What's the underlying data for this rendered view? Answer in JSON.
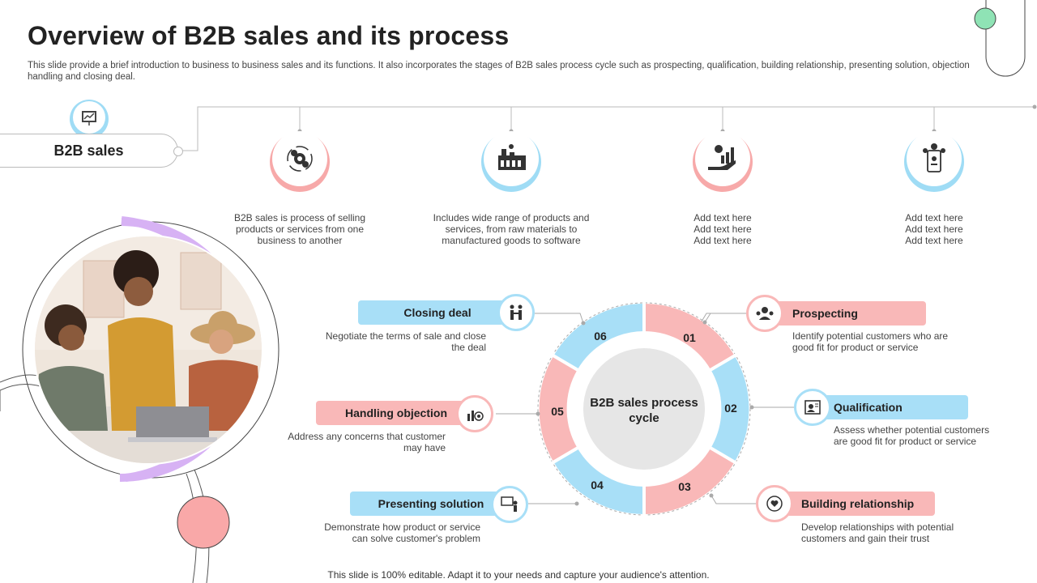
{
  "header": {
    "title": "Overview of B2B sales and its process",
    "subtitle": "This slide provide a brief introduction to business to business sales and its functions. It also incorporates the stages of B2B sales process cycle such as prospecting, qualification, building relationship, presenting solution, objection handling and closing deal."
  },
  "b2b": {
    "label": "B2B sales",
    "items": [
      {
        "icon": "gears-cycle-icon",
        "text": "B2B sales is process of selling products or services from one business to another",
        "accent": "#f7a9a9"
      },
      {
        "icon": "factory-icon",
        "text": "Includes wide range of products and services, from raw materials to manufactured goods to software",
        "accent": "#9fdcf5"
      },
      {
        "icon": "hand-growth-chart-icon",
        "text": "Add text here\nAdd text here\nAdd text here",
        "accent": "#f7a9a9"
      },
      {
        "icon": "mobile-payment-icon",
        "text": "Add text here\nAdd text here\nAdd text here",
        "accent": "#9fdcf5"
      }
    ]
  },
  "cycle": {
    "center_label": "B2B sales process cycle",
    "segments": [
      "01",
      "02",
      "03",
      "04",
      "05",
      "06"
    ],
    "stages": [
      {
        "title": "Prospecting",
        "text": "Identify potential customers who are good fit for product or service"
      },
      {
        "title": "Qualification",
        "text": "Assess whether potential customers are good fit for product or service"
      },
      {
        "title": "Building relationship",
        "text": "Develop relationships with potential customers and gain their trust"
      },
      {
        "title": "Presenting solution",
        "text": "Demonstrate how product or service can solve customer's problem"
      },
      {
        "title": "Handling objection",
        "text": "Address any concerns that customer may have"
      },
      {
        "title": "Closing deal",
        "text": "Negotiate the terms of sale and close the deal"
      }
    ]
  },
  "colors": {
    "pink": "#f9b8b8",
    "blue": "#a8dff7",
    "purple": "#d7b2f4",
    "mint": "#8fe3b5",
    "coral": "#f9a8a8"
  },
  "footer": "This slide is 100% editable. Adapt it to your needs and capture your audience's attention."
}
